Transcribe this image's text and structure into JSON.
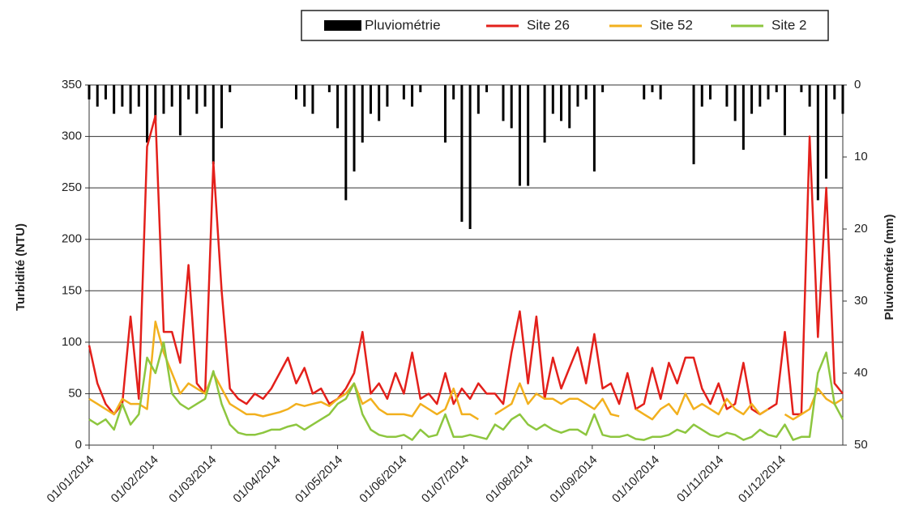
{
  "chart_data": {
    "type": "line",
    "y_label": "Turbidité (NTU)",
    "y2_label": "Pluviométrie (mm)",
    "x": [
      "01/01/2014",
      "05/01/2014",
      "09/01/2014",
      "13/01/2014",
      "17/01/2014",
      "21/01/2014",
      "25/01/2014",
      "29/01/2014",
      "02/02/2014",
      "06/02/2014",
      "10/02/2014",
      "14/02/2014",
      "18/02/2014",
      "22/02/2014",
      "26/02/2014",
      "02/03/2014",
      "06/03/2014",
      "10/03/2014",
      "14/03/2014",
      "18/03/2014",
      "22/03/2014",
      "26/03/2014",
      "30/03/2014",
      "03/04/2014",
      "07/04/2014",
      "11/04/2014",
      "15/04/2014",
      "19/04/2014",
      "23/04/2014",
      "27/04/2014",
      "01/05/2014",
      "05/05/2014",
      "09/05/2014",
      "13/05/2014",
      "17/05/2014",
      "21/05/2014",
      "25/05/2014",
      "29/05/2014",
      "02/06/2014",
      "06/06/2014",
      "10/06/2014",
      "14/06/2014",
      "18/06/2014",
      "22/06/2014",
      "26/06/2014",
      "30/06/2014",
      "04/07/2014",
      "08/07/2014",
      "12/07/2014",
      "16/07/2014",
      "20/07/2014",
      "24/07/2014",
      "28/07/2014",
      "01/08/2014",
      "05/08/2014",
      "09/08/2014",
      "13/08/2014",
      "17/08/2014",
      "21/08/2014",
      "25/08/2014",
      "29/08/2014",
      "02/09/2014",
      "06/09/2014",
      "10/09/2014",
      "14/09/2014",
      "18/09/2014",
      "22/09/2014",
      "26/09/2014",
      "30/09/2014",
      "04/10/2014",
      "08/10/2014",
      "12/10/2014",
      "16/10/2014",
      "20/10/2014",
      "24/10/2014",
      "28/10/2014",
      "01/11/2014",
      "05/11/2014",
      "09/11/2014",
      "13/11/2014",
      "17/11/2014",
      "21/11/2014",
      "25/11/2014",
      "29/11/2014",
      "03/12/2014",
      "07/12/2014",
      "11/12/2014",
      "15/12/2014",
      "19/12/2014",
      "23/12/2014",
      "27/12/2014",
      "31/12/2014"
    ],
    "series": [
      {
        "name": "Pluviométrie",
        "color": "#000000",
        "kind": "bar",
        "axis": "y2",
        "values": [
          2,
          3,
          2,
          4,
          3,
          4,
          3,
          8,
          5,
          4,
          3,
          7,
          2,
          4,
          3,
          11,
          6,
          1,
          0,
          0,
          0,
          0,
          0,
          0,
          0,
          2,
          3,
          4,
          0,
          1,
          6,
          16,
          12,
          8,
          4,
          5,
          3,
          0,
          2,
          3,
          1,
          0,
          0,
          8,
          2,
          19,
          20,
          4,
          1,
          0,
          5,
          6,
          14,
          14,
          0,
          8,
          4,
          5,
          6,
          3,
          2,
          12,
          1,
          0,
          0,
          0,
          0,
          2,
          1,
          2,
          0,
          0,
          0,
          11,
          3,
          2,
          0,
          3,
          5,
          9,
          4,
          3,
          2,
          1,
          7,
          0,
          1,
          3,
          16,
          13,
          2,
          4
        ]
      },
      {
        "name": "Site 26",
        "color": "#e3201b",
        "values": [
          97,
          60,
          40,
          30,
          40,
          125,
          45,
          290,
          320,
          110,
          110,
          80,
          175,
          60,
          50,
          275,
          150,
          55,
          45,
          40,
          50,
          45,
          55,
          70,
          85,
          60,
          75,
          50,
          55,
          40,
          45,
          55,
          70,
          110,
          50,
          60,
          45,
          70,
          50,
          90,
          45,
          50,
          40,
          70,
          40,
          55,
          45,
          60,
          50,
          50,
          40,
          90,
          130,
          60,
          125,
          45,
          85,
          55,
          75,
          95,
          60,
          108,
          55,
          60,
          40,
          70,
          35,
          40,
          75,
          45,
          80,
          60,
          85,
          85,
          55,
          40,
          60,
          35,
          40,
          80,
          35,
          30,
          35,
          40,
          110,
          30,
          30,
          300,
          105,
          250,
          60,
          50
        ]
      },
      {
        "name": "Site 52",
        "color": "#f2b01e",
        "values": [
          45,
          40,
          35,
          30,
          45,
          40,
          40,
          35,
          120,
          90,
          70,
          50,
          60,
          55,
          50,
          70,
          55,
          40,
          35,
          30,
          30,
          28,
          30,
          32,
          35,
          40,
          38,
          40,
          42,
          38,
          45,
          50,
          60,
          40,
          45,
          35,
          30,
          30,
          30,
          28,
          40,
          35,
          30,
          35,
          55,
          30,
          30,
          25,
          null,
          30,
          35,
          40,
          60,
          40,
          50,
          45,
          45,
          40,
          45,
          45,
          40,
          35,
          45,
          30,
          28,
          null,
          35,
          30,
          25,
          35,
          40,
          30,
          50,
          35,
          40,
          35,
          30,
          45,
          35,
          30,
          40,
          30,
          35,
          null,
          30,
          25,
          30,
          35,
          55,
          45,
          40,
          45
        ]
      },
      {
        "name": "Site 2",
        "color": "#8dc63f",
        "values": [
          25,
          20,
          25,
          15,
          40,
          20,
          30,
          85,
          70,
          100,
          50,
          40,
          35,
          40,
          45,
          72,
          40,
          20,
          12,
          10,
          10,
          12,
          15,
          15,
          18,
          20,
          15,
          20,
          25,
          30,
          40,
          45,
          60,
          30,
          15,
          10,
          8,
          8,
          10,
          5,
          15,
          8,
          10,
          30,
          8,
          8,
          10,
          8,
          6,
          20,
          15,
          25,
          30,
          20,
          15,
          20,
          15,
          12,
          15,
          15,
          10,
          30,
          10,
          8,
          8,
          10,
          6,
          5,
          8,
          8,
          10,
          15,
          12,
          20,
          15,
          10,
          8,
          12,
          10,
          5,
          8,
          15,
          10,
          8,
          20,
          5,
          8,
          8,
          70,
          90,
          40,
          25
        ]
      }
    ],
    "xlim": [
      "01/01/2014",
      "31/12/2014"
    ],
    "xticks": [
      "01/01/2014",
      "01/02/2014",
      "01/03/2014",
      "01/04/2014",
      "01/05/2014",
      "01/06/2014",
      "01/07/2014",
      "01/08/2014",
      "01/09/2014",
      "01/10/2014",
      "01/11/2014",
      "01/12/2014"
    ],
    "ylim": [
      0,
      350
    ],
    "yticks": [
      0,
      50,
      100,
      150,
      200,
      250,
      300,
      350
    ],
    "y2lim": [
      50,
      0
    ],
    "y2ticks": [
      0,
      10,
      20,
      30,
      40,
      50
    ],
    "grid": true
  }
}
